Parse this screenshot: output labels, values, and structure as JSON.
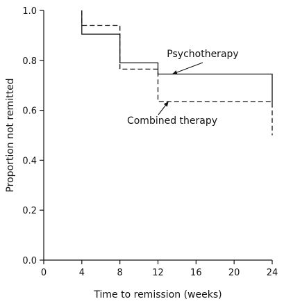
{
  "chart_data": {
    "type": "line",
    "chart_style": "step (Kaplan-Meier survival curves)",
    "xlabel": "Time to remission (weeks)",
    "ylabel": "Proportion not remitted",
    "x_ticks": [
      "0",
      "4",
      "8",
      "12",
      "16",
      "20",
      "24"
    ],
    "y_ticks": [
      "0.0",
      "0.2",
      "0.4",
      "0.6",
      "0.8",
      "1.0"
    ],
    "xlim": [
      0,
      24
    ],
    "ylim": [
      0,
      1.0
    ],
    "grid": false,
    "legend": "none (inline annotations with arrows)",
    "series": [
      {
        "name": "Psychotherapy",
        "line_style": "solid",
        "color": "#111111",
        "steps": [
          {
            "x": 4,
            "y": 1.0
          },
          {
            "x": 4,
            "y": 0.905
          },
          {
            "x": 8,
            "y": 0.905
          },
          {
            "x": 8,
            "y": 0.79
          },
          {
            "x": 12,
            "y": 0.79
          },
          {
            "x": 12,
            "y": 0.745
          },
          {
            "x": 24,
            "y": 0.745
          },
          {
            "x": 24,
            "y": 0.63
          }
        ]
      },
      {
        "name": "Combined therapy",
        "line_style": "dashed",
        "color": "#111111",
        "steps": [
          {
            "x": 4,
            "y": 1.0
          },
          {
            "x": 4,
            "y": 0.94
          },
          {
            "x": 8,
            "y": 0.94
          },
          {
            "x": 8,
            "y": 0.765
          },
          {
            "x": 12,
            "y": 0.765
          },
          {
            "x": 12,
            "y": 0.635
          },
          {
            "x": 24,
            "y": 0.635
          },
          {
            "x": 24,
            "y": 0.5
          }
        ]
      }
    ],
    "annotations": [
      {
        "text": "Psychotherapy",
        "arrow_to": {
          "x": 13.5,
          "y": 0.745
        }
      },
      {
        "text": "Combined therapy",
        "arrow_to": {
          "x": 13.1,
          "y": 0.635
        }
      }
    ]
  }
}
